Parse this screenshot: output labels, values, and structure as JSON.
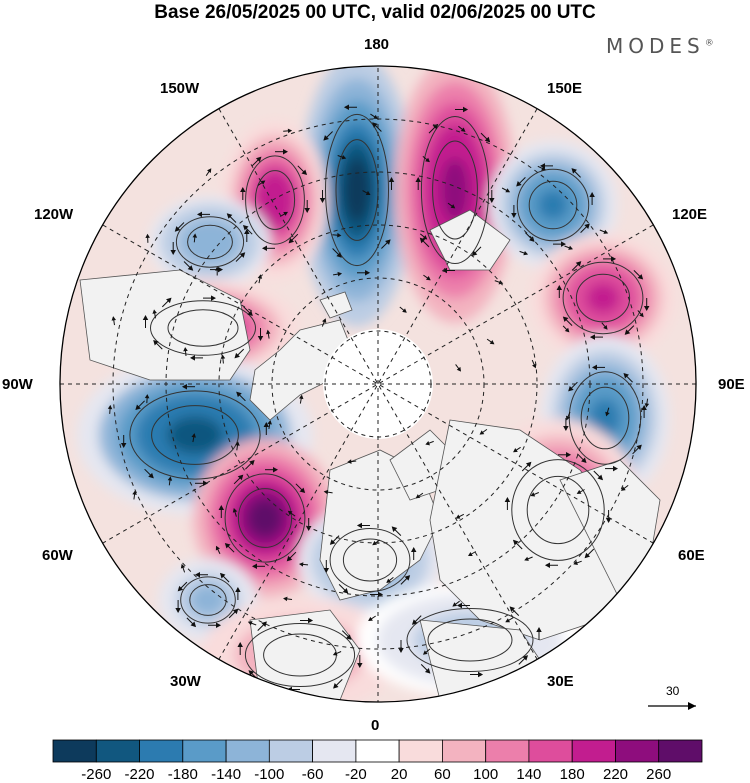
{
  "title": "Base 26/05/2025 00 UTC, valid 02/06/2025 00 UTC",
  "brand": "MODES",
  "brand_mark": "®",
  "longitude_labels": {
    "lon_180": "180",
    "lon_150e": "150E",
    "lon_120e": "120E",
    "lon_90e": "90E",
    "lon_60e": "60E",
    "lon_30e": "30E",
    "lon_0": "0",
    "lon_30w": "30W",
    "lon_60w": "60W",
    "lon_90w": "90W",
    "lon_120w": "120W",
    "lon_150w": "150W"
  },
  "vector_reference": "30",
  "colorbar": {
    "labels": [
      "-260",
      "-220",
      "-180",
      "-140",
      "-100",
      "-60",
      "-20",
      "20",
      "60",
      "100",
      "140",
      "180",
      "220",
      "260"
    ],
    "colors": [
      "#0d3a5c",
      "#11577f",
      "#2c7bb0",
      "#5a9bc8",
      "#8db4d8",
      "#bccde4",
      "#e5e7f1",
      "#ffffff",
      "#f9dcdc",
      "#f3b3c0",
      "#ec7fab",
      "#de4d9c",
      "#c21d8f",
      "#8e0d7d",
      "#5f0d69"
    ]
  },
  "anomaly_centres": [
    {
      "name": "low-north-central",
      "value": -280
    },
    {
      "name": "high-north-right",
      "value": 240
    },
    {
      "name": "high-north-left",
      "value": 200
    },
    {
      "name": "low-northeast",
      "value": -200
    },
    {
      "name": "low-northwest",
      "value": -140
    },
    {
      "name": "high-east",
      "value": 180
    },
    {
      "name": "low-east",
      "value": -200
    },
    {
      "name": "high-southeast",
      "value": 200
    },
    {
      "name": "high-west",
      "value": 220
    },
    {
      "name": "low-west",
      "value": -240
    },
    {
      "name": "high-southwest",
      "value": 260
    },
    {
      "name": "low-south",
      "value": -160
    },
    {
      "name": "low-southwest",
      "value": -120
    },
    {
      "name": "high-south",
      "value": 120
    },
    {
      "name": "low-southeast-weak",
      "value": -80
    }
  ]
}
